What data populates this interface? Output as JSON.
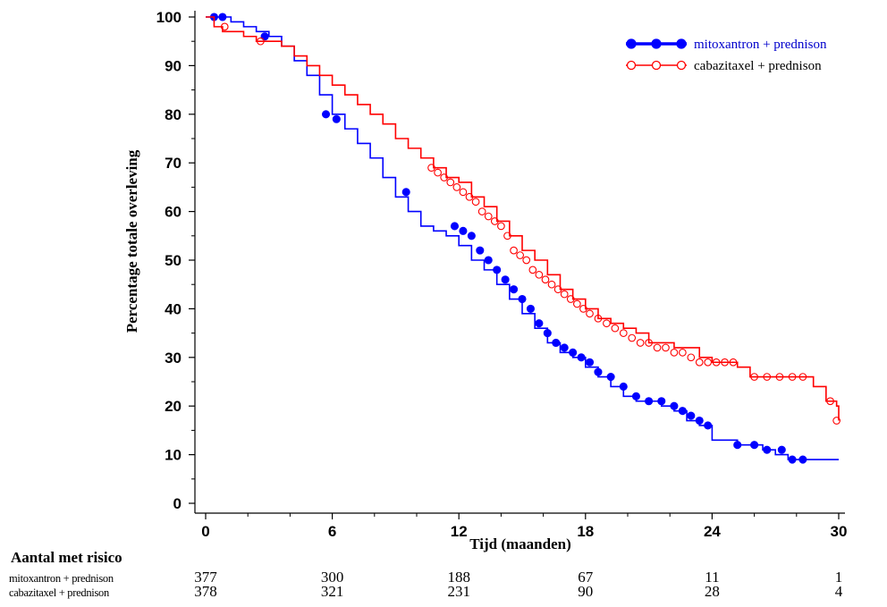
{
  "chart_data": {
    "type": "line",
    "subtype": "kaplan-meier step",
    "xlabel": "Tijd (maanden)",
    "ylabel": "Percentage totale overleving",
    "xlim": [
      0,
      30
    ],
    "ylim": [
      0,
      100
    ],
    "xticks": [
      0,
      6,
      12,
      18,
      24,
      30
    ],
    "yticks": [
      0,
      10,
      20,
      30,
      40,
      50,
      60,
      70,
      80,
      90,
      100
    ],
    "grid": false,
    "legend_position": "top-right",
    "series": [
      {
        "name": "mitoxantron + prednison",
        "color": "#0000ff",
        "marker": "filled-circle",
        "x": [
          0,
          0.4,
          0.8,
          1.2,
          1.8,
          2.4,
          3.0,
          3.6,
          4.2,
          4.8,
          5.4,
          6.0,
          6.6,
          7.2,
          7.8,
          8.4,
          9.0,
          9.6,
          10.2,
          10.8,
          11.4,
          12.0,
          12.6,
          13.2,
          13.8,
          14.4,
          15.0,
          15.6,
          16.2,
          16.8,
          17.4,
          18.0,
          18.6,
          19.2,
          19.8,
          20.4,
          21.0,
          21.6,
          22.2,
          22.8,
          23.4,
          24.0,
          25.2,
          26.4,
          27.0,
          27.6,
          28.2,
          28.8,
          30.0
        ],
        "y": [
          100,
          100,
          100,
          99,
          98,
          97,
          96,
          94,
          91,
          88,
          84,
          80,
          77,
          74,
          71,
          67,
          63,
          60,
          57,
          56,
          55,
          53,
          50,
          48,
          45,
          42,
          39,
          36,
          33,
          31,
          30,
          28,
          26,
          24,
          22,
          21,
          21,
          20,
          19,
          17,
          16,
          13,
          12,
          11,
          10,
          9,
          9,
          9,
          9
        ],
        "censor_x": [
          0.4,
          0.8,
          2.8,
          5.7,
          6.2,
          9.5,
          11.8,
          12.2,
          12.6,
          13.0,
          13.4,
          13.8,
          14.2,
          14.6,
          15.0,
          15.4,
          15.8,
          16.2,
          16.6,
          17.0,
          17.4,
          17.8,
          18.2,
          18.6,
          19.2,
          19.8,
          20.4,
          21.0,
          21.6,
          22.2,
          22.6,
          23.0,
          23.4,
          23.8,
          25.2,
          26.0,
          26.6,
          27.3,
          27.8,
          28.3
        ],
        "censor_y": [
          100,
          100,
          96,
          80,
          79,
          64,
          57,
          56,
          55,
          52,
          50,
          48,
          46,
          44,
          42,
          40,
          37,
          35,
          33,
          32,
          31,
          30,
          29,
          27,
          26,
          24,
          22,
          21,
          21,
          20,
          19,
          18,
          17,
          16,
          12,
          12,
          11,
          11,
          9,
          9
        ]
      },
      {
        "name": "cabazitaxel + prednison",
        "color": "#ff0000",
        "marker": "open-circle",
        "x": [
          0,
          0.4,
          0.8,
          1.2,
          1.8,
          2.4,
          3.0,
          3.6,
          4.2,
          4.8,
          5.4,
          6.0,
          6.6,
          7.2,
          7.8,
          8.4,
          9.0,
          9.6,
          10.2,
          10.8,
          11.4,
          12.0,
          12.6,
          13.2,
          13.8,
          14.4,
          15.0,
          15.6,
          16.2,
          16.8,
          17.4,
          18.0,
          18.6,
          19.2,
          19.8,
          20.4,
          21.0,
          21.6,
          22.2,
          22.8,
          23.4,
          24.0,
          24.6,
          25.2,
          25.8,
          26.4,
          27.0,
          27.6,
          28.2,
          28.8,
          29.4,
          29.9,
          30.0
        ],
        "y": [
          100,
          98,
          97,
          97,
          96,
          95,
          95,
          94,
          92,
          90,
          88,
          86,
          84,
          82,
          80,
          78,
          75,
          73,
          71,
          69,
          67,
          66,
          63,
          61,
          58,
          55,
          52,
          50,
          47,
          44,
          42,
          40,
          38,
          37,
          36,
          35,
          33,
          33,
          32,
          32,
          30,
          29,
          29,
          28,
          26,
          26,
          26,
          26,
          26,
          24,
          21,
          20,
          17
        ],
        "censor_x": [
          0.9,
          2.6,
          10.7,
          11.0,
          11.3,
          11.6,
          11.9,
          12.2,
          12.5,
          12.8,
          13.1,
          13.4,
          13.7,
          14.0,
          14.3,
          14.6,
          14.9,
          15.2,
          15.5,
          15.8,
          16.1,
          16.4,
          16.7,
          17.0,
          17.3,
          17.6,
          17.9,
          18.2,
          18.6,
          19.0,
          19.4,
          19.8,
          20.2,
          20.6,
          21.0,
          21.4,
          21.8,
          22.2,
          22.6,
          23.0,
          23.4,
          23.8,
          24.2,
          24.6,
          25.0,
          26.0,
          26.6,
          27.2,
          27.8,
          28.3,
          29.6,
          29.9
        ],
        "censor_y": [
          98,
          95,
          69,
          68,
          67,
          66,
          65,
          64,
          63,
          62,
          60,
          59,
          58,
          57,
          55,
          52,
          51,
          50,
          48,
          47,
          46,
          45,
          44,
          43,
          42,
          41,
          40,
          39,
          38,
          37,
          36,
          35,
          34,
          33,
          33,
          32,
          32,
          31,
          31,
          30,
          29,
          29,
          29,
          29,
          29,
          26,
          26,
          26,
          26,
          26,
          21,
          17
        ]
      }
    ]
  },
  "risk_table": {
    "title": "Aantal met risico",
    "times": [
      0,
      6,
      12,
      18,
      24,
      30
    ],
    "rows": [
      {
        "label": "mitoxantron + prednison",
        "values": [
          "377",
          "300",
          "188",
          "67",
          "11",
          "1"
        ]
      },
      {
        "label": "cabazitaxel + prednison",
        "values": [
          "378",
          "321",
          "231",
          "90",
          "28",
          "4"
        ]
      }
    ]
  }
}
